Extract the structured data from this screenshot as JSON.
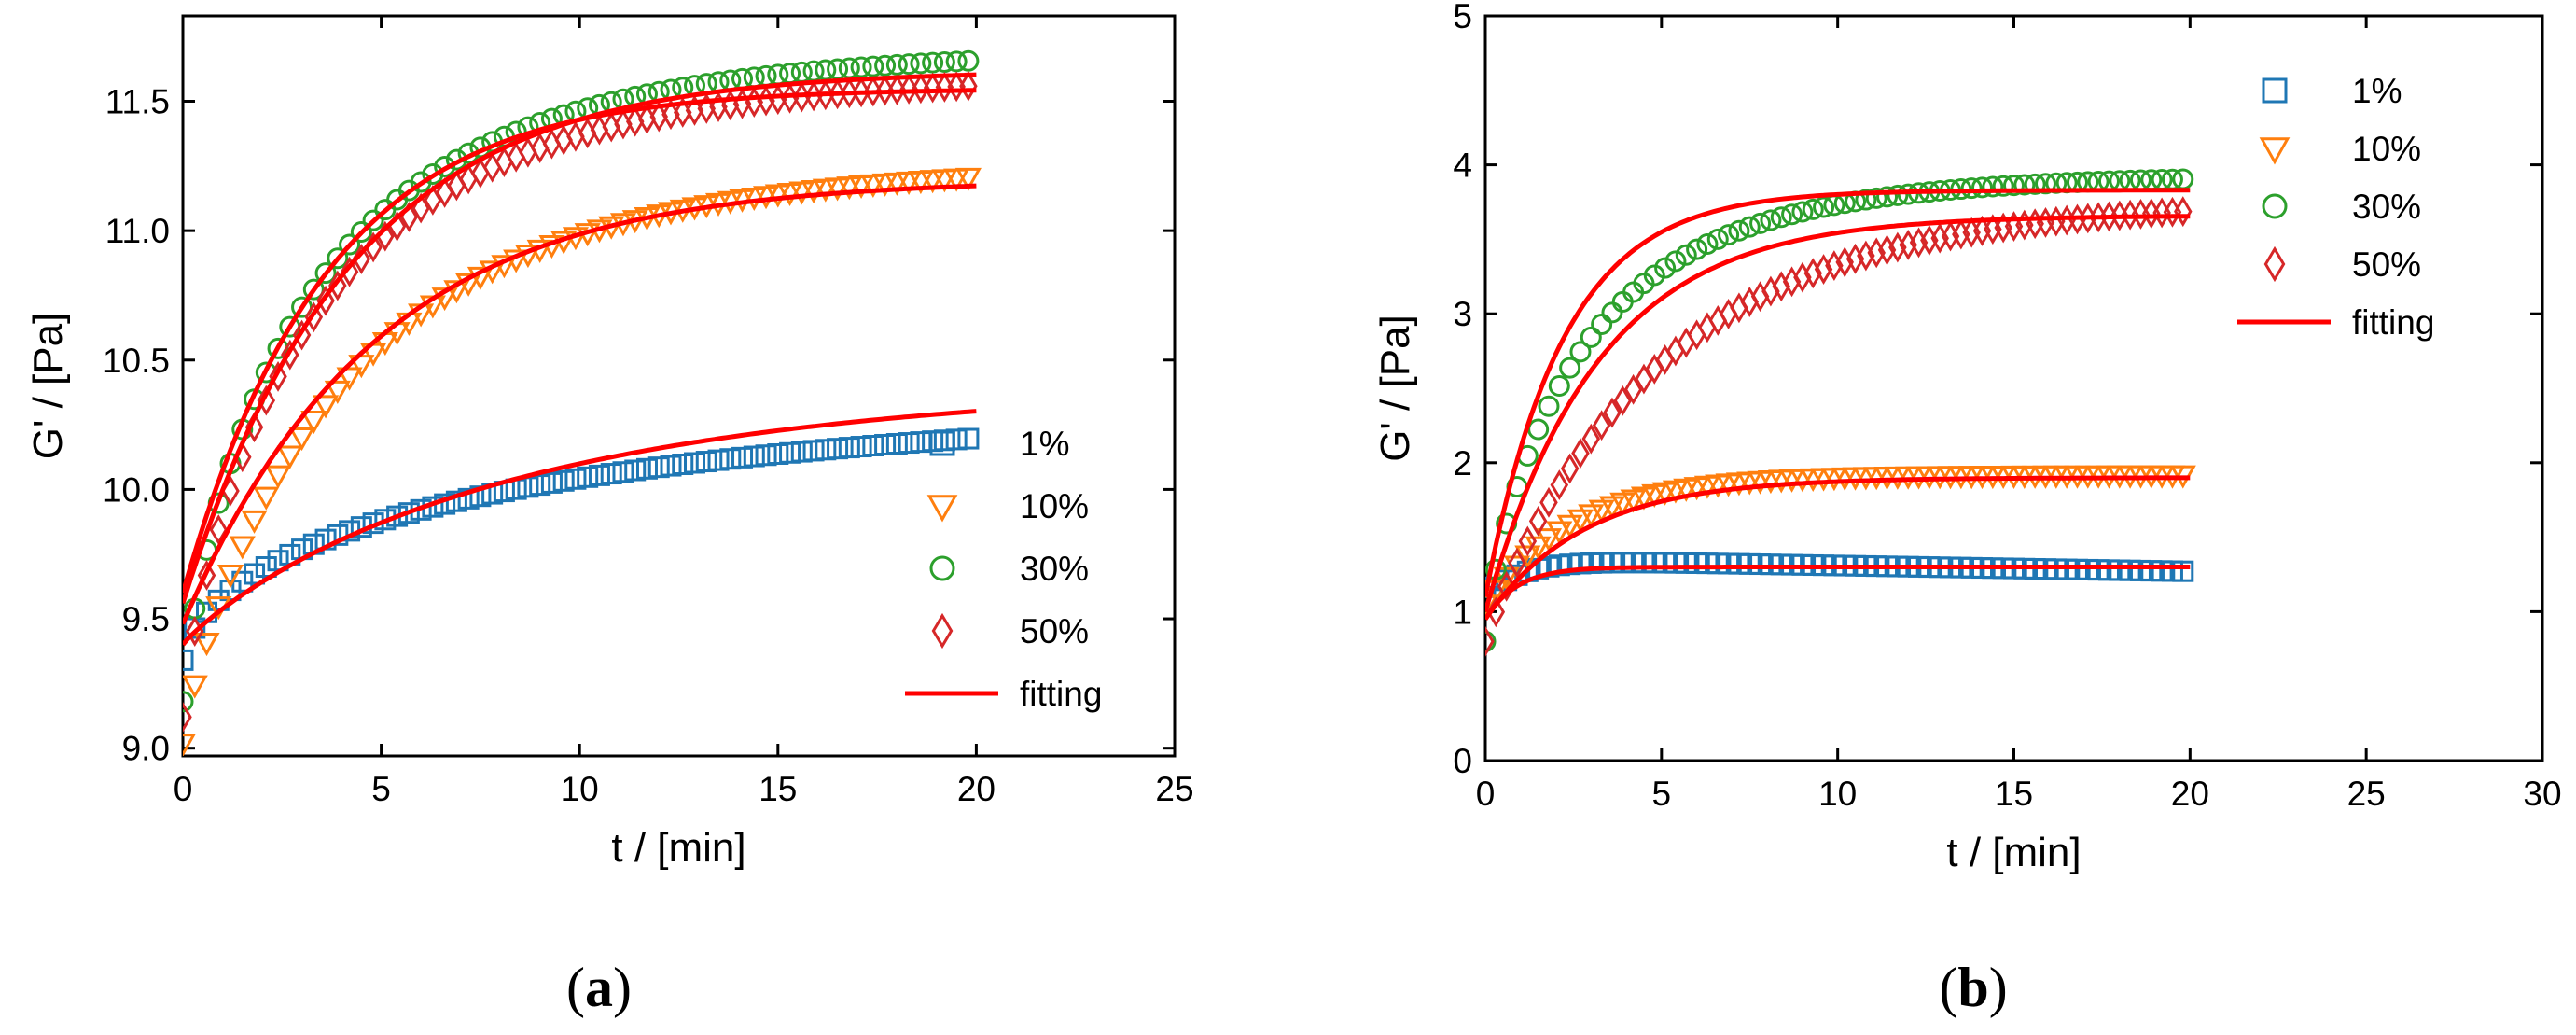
{
  "colors": {
    "s1": "#1f77b4",
    "s10": "#ff7f0e",
    "s30": "#2ca02c",
    "s50": "#d62728",
    "fit": "#ff0000",
    "axis": "#000000"
  },
  "chart_data": [
    {
      "id": "a",
      "type": "scatter",
      "caption": "a",
      "xlabel": "t / [min]",
      "ylabel": "G' / [Pa]",
      "xlim": [
        0,
        25
      ],
      "ylim": [
        8.97,
        11.83
      ],
      "xticks": [
        0,
        5,
        10,
        15,
        20,
        25
      ],
      "xtick_labels": [
        "0",
        "5",
        "10",
        "15",
        "20",
        "25"
      ],
      "yticks": [
        9.0,
        9.5,
        10.0,
        10.5,
        11.0,
        11.5
      ],
      "ytick_labels": [
        "9.0",
        "9.5",
        "10.0",
        "10.5",
        "11.0",
        "11.5"
      ],
      "legend_position": "center-right",
      "legend": [
        "1%",
        "10%",
        "30%",
        "50%",
        "fitting"
      ],
      "series": [
        {
          "name": "1%",
          "marker": "square",
          "color_key": "s1",
          "model": {
            "ymin": 9.34,
            "ymax": 10.39,
            "tau": 8.5,
            "p": 0.62
          }
        },
        {
          "name": "10%",
          "marker": "triangle-down",
          "color_key": "s10",
          "model": {
            "ymin": 9.02,
            "ymax": 11.26,
            "tau": 4.2,
            "p": 0.85
          }
        },
        {
          "name": "30%",
          "marker": "circle",
          "color_key": "s30",
          "model": {
            "ymin": 9.18,
            "ymax": 11.7,
            "tau": 3.3,
            "p": 0.78
          }
        },
        {
          "name": "50%",
          "marker": "diamond",
          "color_key": "s50",
          "model": {
            "ymin": 9.12,
            "ymax": 11.6,
            "tau": 3.4,
            "p": 0.8
          }
        }
      ],
      "fits": [
        {
          "series": "1%",
          "ymin": 9.4,
          "ymax": 10.42,
          "tau": 8.5,
          "p": 0.9
        },
        {
          "series": "10%",
          "ymin": 9.48,
          "ymax": 11.2,
          "tau": 4.8,
          "p": 1.0
        },
        {
          "series": "30%",
          "ymin": 9.56,
          "ymax": 11.62,
          "tau": 4.2,
          "p": 1.0
        },
        {
          "series": "50%",
          "ymin": 9.6,
          "ymax": 11.55,
          "tau": 3.6,
          "p": 1.0
        }
      ]
    },
    {
      "id": "b",
      "type": "scatter",
      "caption": "b",
      "xlabel": "t / [min]",
      "ylabel": "G' / [Pa]",
      "xlim": [
        0,
        30
      ],
      "ylim": [
        0,
        5
      ],
      "xticks": [
        0,
        5,
        10,
        15,
        20,
        25,
        30
      ],
      "xtick_labels": [
        "0",
        "5",
        "10",
        "15",
        "20",
        "25",
        "30"
      ],
      "yticks": [
        0,
        1,
        2,
        3,
        4,
        5
      ],
      "ytick_labels": [
        "0",
        "1",
        "2",
        "3",
        "4",
        "5"
      ],
      "legend_position": "top-right",
      "legend": [
        "1%",
        "10%",
        "30%",
        "50%",
        "fitting"
      ],
      "series": [
        {
          "name": "1%",
          "marker": "square",
          "color_key": "s1",
          "model": {
            "ymin": 1.1,
            "ymax": 1.35,
            "tau": 1.0,
            "p": 1.0,
            "drift": -0.004
          }
        },
        {
          "name": "10%",
          "marker": "triangle-down",
          "color_key": "s10",
          "model": {
            "ymin": 1.05,
            "ymax": 1.92,
            "tau": 2.5,
            "p": 1.0
          }
        },
        {
          "name": "30%",
          "marker": "circle",
          "color_key": "s30",
          "model": {
            "ymin": 0.8,
            "ymax": 3.93,
            "tau": 2.8,
            "p": 0.8
          }
        },
        {
          "name": "50%",
          "marker": "diamond",
          "color_key": "s50",
          "model": {
            "ymin": 0.8,
            "ymax": 3.76,
            "tau": 5.0,
            "p": 0.95
          }
        }
      ],
      "fits": [
        {
          "series": "1%",
          "ymin": 0.95,
          "ymax": 1.3,
          "tau": 0.9,
          "p": 1.0
        },
        {
          "series": "10%",
          "ymin": 0.95,
          "ymax": 1.9,
          "tau": 2.8,
          "p": 1.0
        },
        {
          "series": "30%",
          "ymin": 1.1,
          "ymax": 3.83,
          "tau": 2.2,
          "p": 1.0
        },
        {
          "series": "50%",
          "ymin": 1.0,
          "ymax": 3.66,
          "tau": 3.2,
          "p": 1.0
        }
      ]
    }
  ]
}
